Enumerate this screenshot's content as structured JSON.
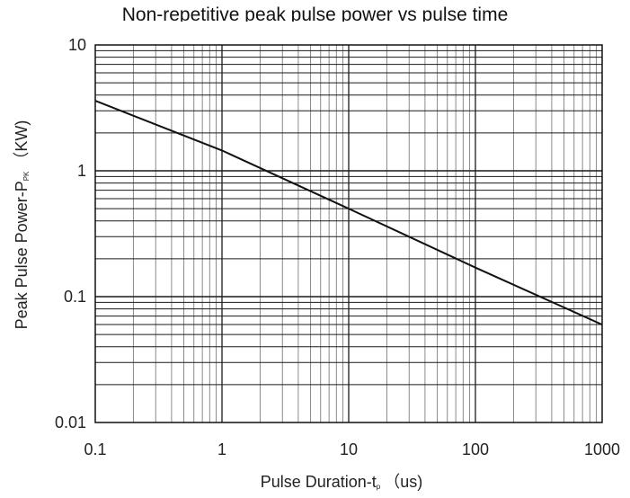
{
  "chart_data": {
    "type": "line",
    "title": "Non-repetitive peak pulse power vs pulse time",
    "xlabel": {
      "main": "Pulse Duration-t",
      "sub": "p",
      "unit": "（us)"
    },
    "ylabel": {
      "main": "Peak Pulse Power-P",
      "sub": "PK",
      "unit": "（KW)"
    },
    "xscale": "log",
    "yscale": "log",
    "xlim": [
      0.1,
      1000
    ],
    "ylim": [
      0.01,
      10
    ],
    "grid": true,
    "x_ticks": [
      "0.1",
      "1",
      "10",
      "100",
      "1000"
    ],
    "y_ticks": [
      "0.01",
      "0.1",
      "1",
      "10"
    ],
    "series": [
      {
        "x": [
          0.1,
          1,
          10,
          100,
          1000
        ],
        "y": [
          3.6,
          1.45,
          0.5,
          0.17,
          0.06
        ]
      }
    ],
    "colors": {
      "line": "#111111",
      "grid": "#1a1a1a",
      "grid_light": "#8a8a8a",
      "frame": "#111111"
    }
  }
}
